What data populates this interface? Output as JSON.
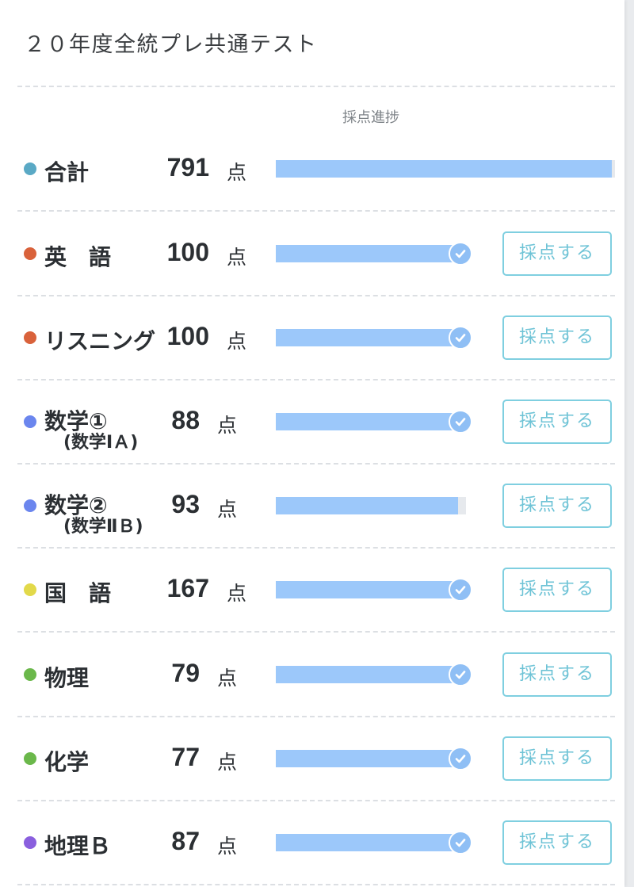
{
  "header": {
    "title": "２０年度全統プレ共通テスト",
    "progress_header": "採点進捗"
  },
  "colors": {
    "bar_fill": "#9cc8fa",
    "bar_track": "#e6e9ed",
    "check": "#8fbff5",
    "button_border": "#7fcfe0",
    "button_text": "#6ec3d6"
  },
  "rows": [
    {
      "label": "合計",
      "sub": "",
      "score": "791",
      "unit": "点",
      "dot_color": "#5aa9c5",
      "progress": 100,
      "complete": false,
      "button": ""
    },
    {
      "label": "英　語",
      "sub": "",
      "score": "100",
      "unit": "点",
      "dot_color": "#d9623b",
      "progress": 100,
      "complete": true,
      "button": "採点する"
    },
    {
      "label": "リスニング",
      "sub": "",
      "score": "100",
      "unit": "点",
      "dot_color": "#d9623b",
      "progress": 100,
      "complete": true,
      "button": "採点する"
    },
    {
      "label": "数学①",
      "sub": "(数学ⅠＡ)",
      "score": "88",
      "unit": "点",
      "dot_color": "#6b86ee",
      "progress": 100,
      "complete": true,
      "button": "採点する"
    },
    {
      "label": "数学②",
      "sub": "(数学ⅡＢ)",
      "score": "93",
      "unit": "点",
      "dot_color": "#6b86ee",
      "progress": 96,
      "complete": false,
      "button": "採点する"
    },
    {
      "label": "国　語",
      "sub": "",
      "score": "167",
      "unit": "点",
      "dot_color": "#e2d94a",
      "progress": 100,
      "complete": true,
      "button": "採点する"
    },
    {
      "label": "物理",
      "sub": "",
      "score": "79",
      "unit": "点",
      "dot_color": "#6bb84b",
      "progress": 100,
      "complete": true,
      "button": "採点する"
    },
    {
      "label": "化学",
      "sub": "",
      "score": "77",
      "unit": "点",
      "dot_color": "#6bb84b",
      "progress": 100,
      "complete": true,
      "button": "採点する"
    },
    {
      "label": "地理Ｂ",
      "sub": "",
      "score": "87",
      "unit": "点",
      "dot_color": "#8a5fde",
      "progress": 100,
      "complete": true,
      "button": "採点する"
    }
  ]
}
